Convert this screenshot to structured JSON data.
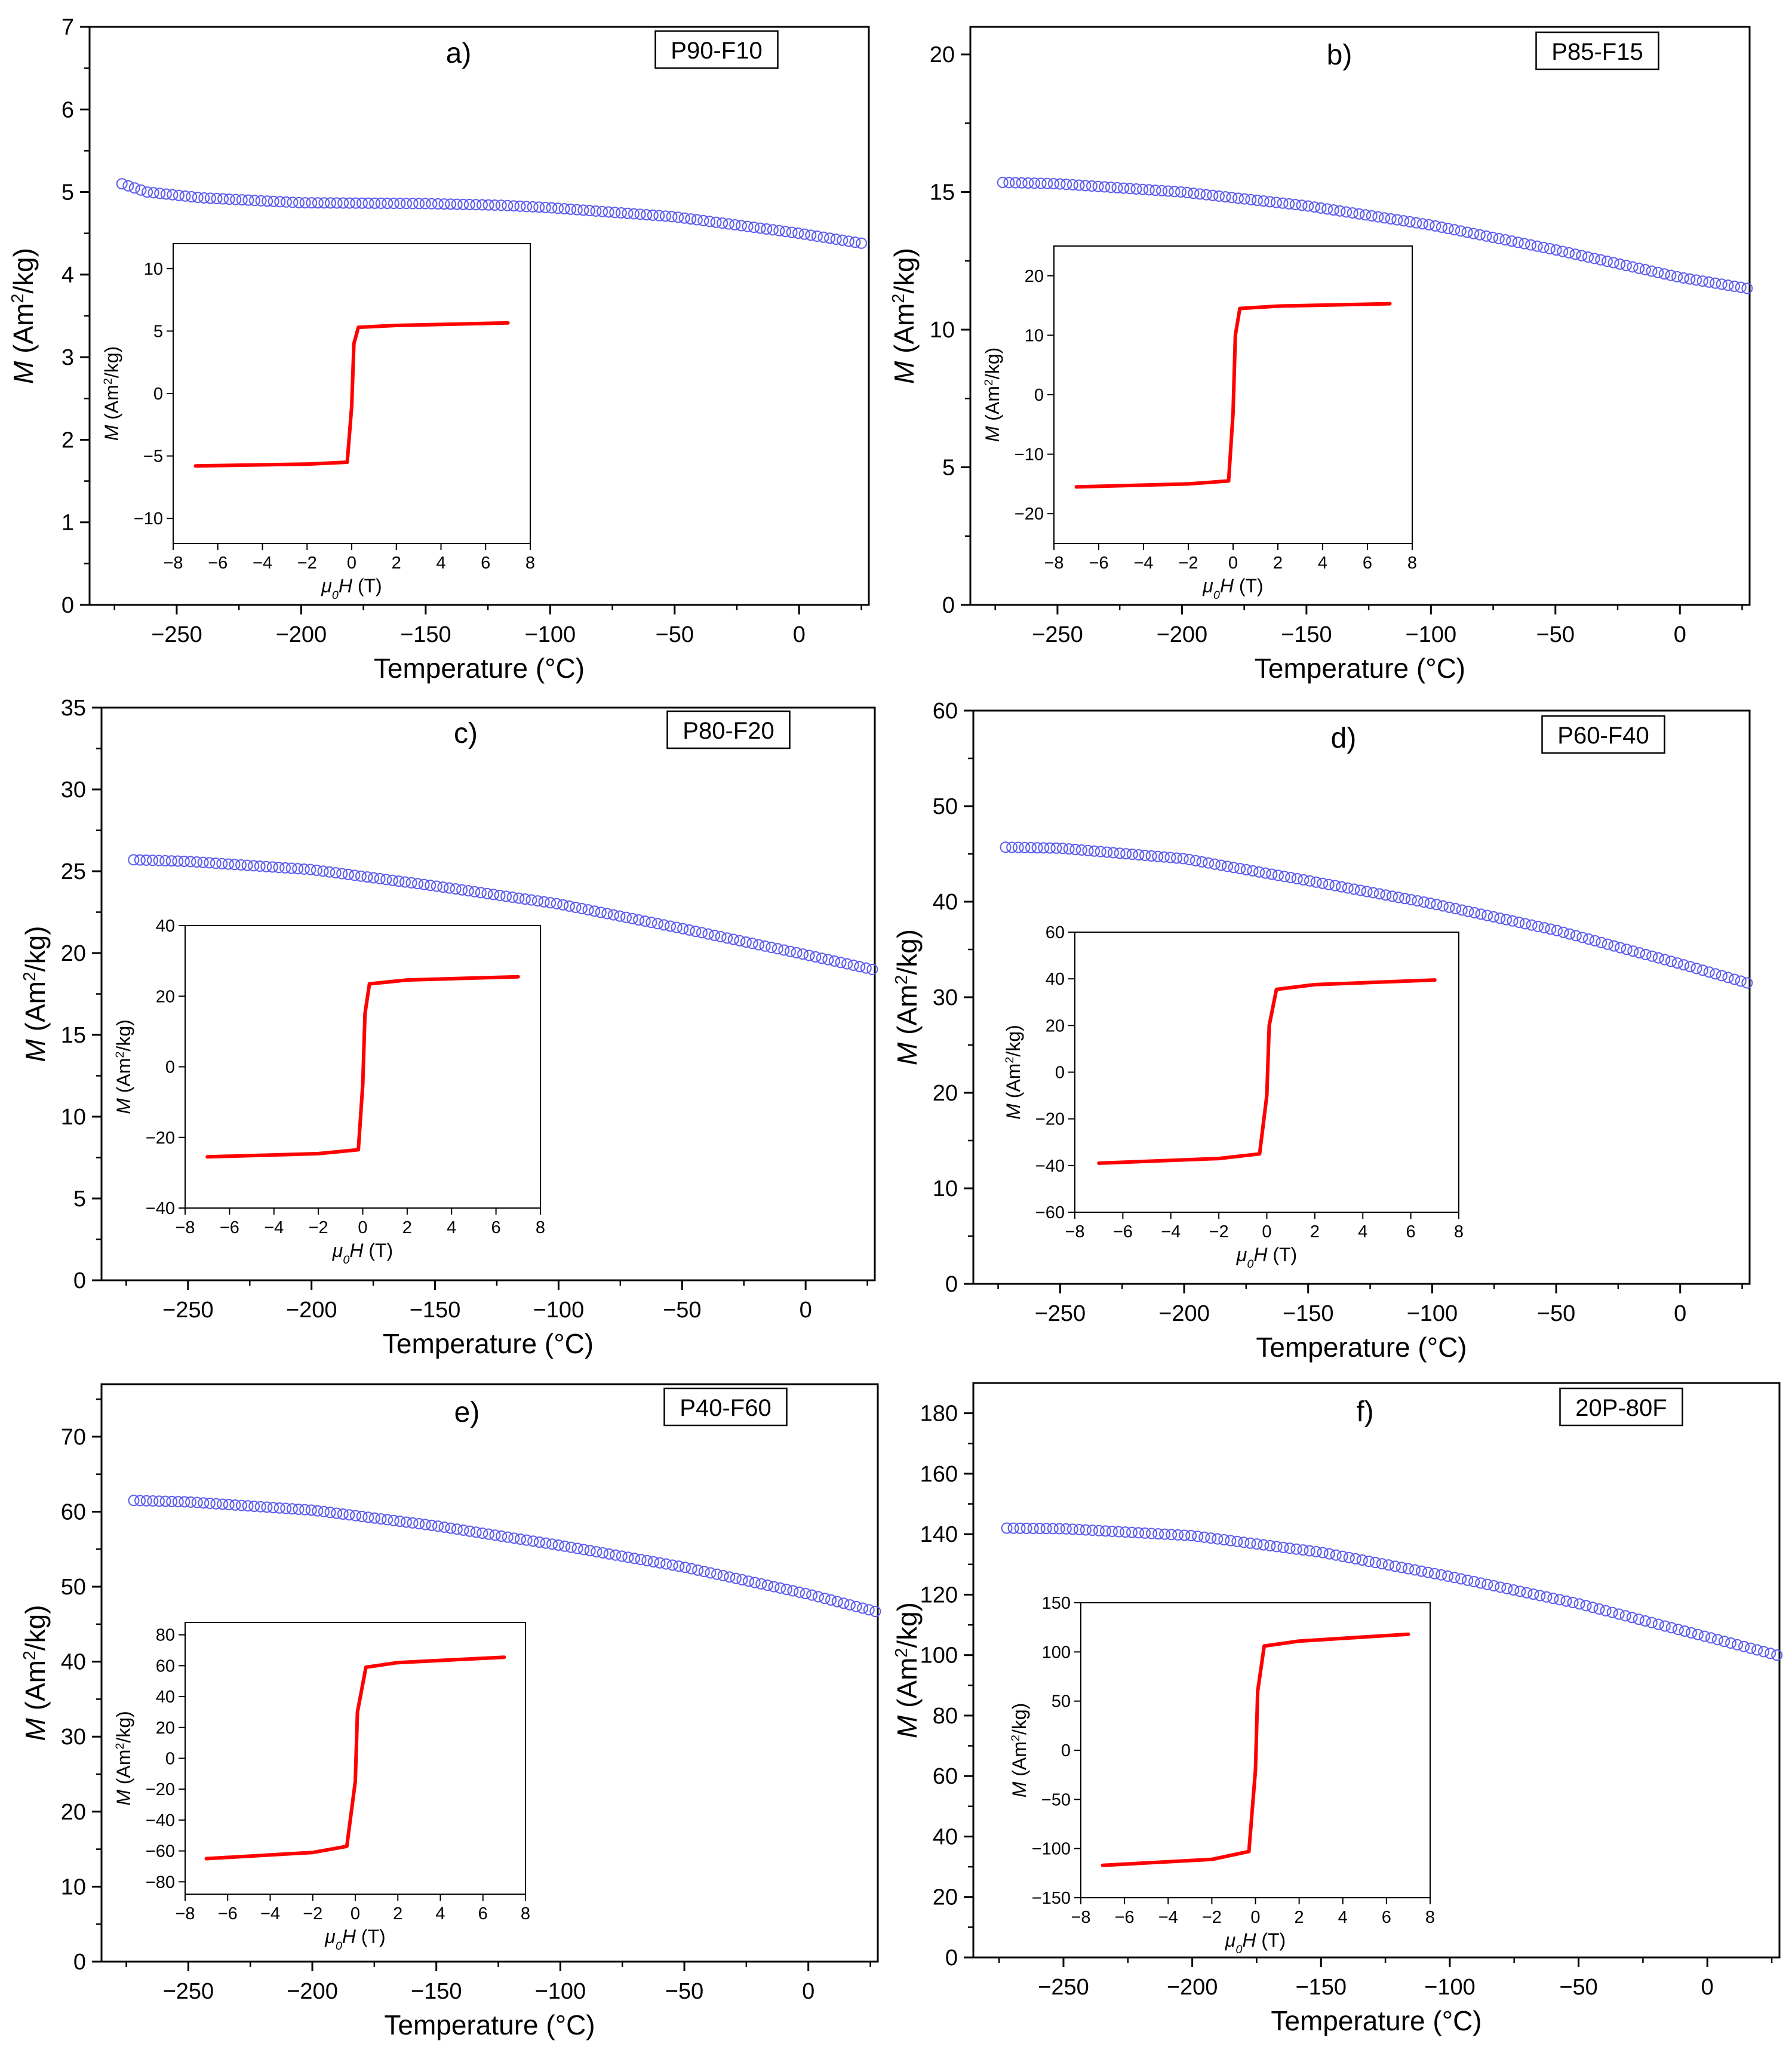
{
  "figure": {
    "marker_color": "#5b5bf0",
    "inset_color": "#ff0000",
    "common": {
      "xlabel": "Temperature (°C)",
      "ylabel_main": "M (Am²/kg)",
      "ylabel_inset": "M (Am²/kg)",
      "xlabel_inset": "μ0H (T)",
      "xticks": [
        -250,
        -200,
        -150,
        -100,
        -50,
        0
      ],
      "xlim": [
        -285,
        28
      ],
      "inset_xticks": [
        -8,
        -6,
        -4,
        -2,
        0,
        2,
        4,
        6,
        8
      ],
      "inset_xlim": [
        -8,
        8
      ]
    }
  },
  "chart_data": [
    {
      "type": "scatter",
      "panel": "a)",
      "sample": "P90-F10",
      "ylim": [
        0,
        7
      ],
      "yticks": [
        0,
        1,
        2,
        3,
        4,
        5,
        6,
        7
      ],
      "series": [
        {
          "name": "M(T)",
          "x_start": -272,
          "x_end": 25,
          "y_start": 5.1,
          "y_end": 4.38,
          "key_points": [
            [
              -272,
              5.1
            ],
            [
              -262,
              5.0
            ],
            [
              -240,
              4.93
            ],
            [
              -200,
              4.87
            ],
            [
              -150,
              4.86
            ],
            [
              -120,
              4.84
            ],
            [
              -100,
              4.81
            ],
            [
              -50,
              4.7
            ],
            [
              0,
              4.5
            ],
            [
              25,
              4.38
            ]
          ]
        }
      ],
      "inset": {
        "type": "line",
        "ylim": [
          -12,
          12
        ],
        "yticks": [
          -10,
          -5,
          0,
          5,
          10
        ],
        "points": [
          [
            -7,
            -5.8
          ],
          [
            -2,
            -5.65
          ],
          [
            -0.2,
            -5.5
          ],
          [
            0,
            -1
          ],
          [
            0.1,
            4
          ],
          [
            0.3,
            5.3
          ],
          [
            2,
            5.45
          ],
          [
            7,
            5.65
          ]
        ]
      }
    },
    {
      "type": "scatter",
      "panel": "b)",
      "sample": "P85-F15",
      "ylim": [
        0,
        21
      ],
      "yticks": [
        0,
        5,
        10,
        15,
        20
      ],
      "series": [
        {
          "name": "M(T)",
          "x_start": -272,
          "x_end": 27,
          "y_start": 15.35,
          "y_end": 11.5,
          "key_points": [
            [
              -272,
              15.35
            ],
            [
              -250,
              15.3
            ],
            [
              -200,
              15.0
            ],
            [
              -150,
              14.5
            ],
            [
              -100,
              13.8
            ],
            [
              -50,
              12.9
            ],
            [
              0,
              11.9
            ],
            [
              27,
              11.5
            ]
          ]
        }
      ],
      "inset": {
        "type": "line",
        "ylim": [
          -25,
          25
        ],
        "yticks": [
          -20,
          -10,
          0,
          10,
          20
        ],
        "points": [
          [
            -7,
            -15.5
          ],
          [
            -2,
            -15.0
          ],
          [
            -0.2,
            -14.5
          ],
          [
            0,
            -3
          ],
          [
            0.1,
            10
          ],
          [
            0.3,
            14.5
          ],
          [
            2,
            14.9
          ],
          [
            7,
            15.3
          ]
        ]
      }
    },
    {
      "type": "scatter",
      "panel": "c)",
      "sample": "P80-F20",
      "ylim": [
        0,
        35
      ],
      "yticks": [
        0,
        5,
        10,
        15,
        20,
        25,
        30,
        35
      ],
      "series": [
        {
          "name": "M(T)",
          "x_start": -272,
          "x_end": 27,
          "y_start": 25.7,
          "y_end": 19.0,
          "key_points": [
            [
              -272,
              25.7
            ],
            [
              -250,
              25.6
            ],
            [
              -200,
              25.1
            ],
            [
              -150,
              24.1
            ],
            [
              -100,
              23.0
            ],
            [
              -50,
              21.5
            ],
            [
              0,
              19.9
            ],
            [
              27,
              19.0
            ]
          ]
        }
      ],
      "inset": {
        "type": "line",
        "ylim": [
          -40,
          40
        ],
        "yticks": [
          -40,
          -20,
          0,
          20,
          40
        ],
        "points": [
          [
            -7,
            -25.5
          ],
          [
            -2,
            -24.6
          ],
          [
            -0.2,
            -23.5
          ],
          [
            0,
            -5
          ],
          [
            0.1,
            15
          ],
          [
            0.3,
            23.5
          ],
          [
            2,
            24.6
          ],
          [
            7,
            25.5
          ]
        ]
      }
    },
    {
      "type": "scatter",
      "panel": "d)",
      "sample": "P60-F40",
      "ylim": [
        0,
        60
      ],
      "yticks": [
        0,
        10,
        20,
        30,
        40,
        50,
        60
      ],
      "series": [
        {
          "name": "M(T)",
          "x_start": -272,
          "x_end": 27,
          "y_start": 45.7,
          "y_end": 31.5,
          "key_points": [
            [
              -272,
              45.7
            ],
            [
              -250,
              45.6
            ],
            [
              -200,
              44.5
            ],
            [
              -150,
              42.2
            ],
            [
              -100,
              39.8
            ],
            [
              -50,
              37.0
            ],
            [
              0,
              33.5
            ],
            [
              27,
              31.5
            ]
          ]
        }
      ],
      "inset": {
        "type": "line",
        "ylim": [
          -60,
          60
        ],
        "yticks": [
          -60,
          -40,
          -20,
          0,
          20,
          40,
          60
        ],
        "points": [
          [
            -7,
            -39
          ],
          [
            -2,
            -37
          ],
          [
            -0.3,
            -35
          ],
          [
            0,
            -10
          ],
          [
            0.1,
            20
          ],
          [
            0.4,
            35.5
          ],
          [
            2,
            37.5
          ],
          [
            7,
            39.5
          ]
        ]
      }
    },
    {
      "type": "scatter",
      "panel": "e)",
      "sample": "P40-F60",
      "ylim": [
        0,
        77
      ],
      "yticks": [
        0,
        10,
        20,
        30,
        40,
        50,
        60,
        70
      ],
      "series": [
        {
          "name": "M(T)",
          "x_start": -272,
          "x_end": 27,
          "y_start": 61.5,
          "y_end": 46.7,
          "key_points": [
            [
              -272,
              61.5
            ],
            [
              -250,
              61.3
            ],
            [
              -200,
              60.2
            ],
            [
              -150,
              58.1
            ],
            [
              -100,
              55.5
            ],
            [
              -50,
              52.6
            ],
            [
              0,
              49.0
            ],
            [
              27,
              46.7
            ]
          ]
        }
      ],
      "inset": {
        "type": "line",
        "ylim": [
          -88,
          88
        ],
        "yticks": [
          -80,
          -60,
          -40,
          -20,
          0,
          20,
          40,
          60,
          80
        ],
        "points": [
          [
            -7,
            -65
          ],
          [
            -2,
            -61
          ],
          [
            -0.4,
            -57
          ],
          [
            0,
            -15
          ],
          [
            0.1,
            30
          ],
          [
            0.5,
            59
          ],
          [
            2,
            62
          ],
          [
            7,
            65.5
          ]
        ]
      }
    },
    {
      "type": "scatter",
      "panel": "f)",
      "sample": "20P-80F",
      "ylim": [
        0,
        190
      ],
      "yticks": [
        0,
        20,
        40,
        60,
        80,
        100,
        120,
        140,
        160,
        180
      ],
      "series": [
        {
          "name": "M(T)",
          "x_start": -272,
          "x_end": 27,
          "y_start": 142,
          "y_end": 100,
          "key_points": [
            [
              -272,
              142
            ],
            [
              -250,
              141.8
            ],
            [
              -200,
              139.5
            ],
            [
              -150,
              134
            ],
            [
              -100,
              126
            ],
            [
              -50,
              117
            ],
            [
              0,
              106
            ],
            [
              27,
              100
            ]
          ]
        }
      ],
      "inset": {
        "type": "line",
        "ylim": [
          -150,
          150
        ],
        "yticks": [
          -150,
          -100,
          -50,
          0,
          50,
          100,
          150
        ],
        "points": [
          [
            -7,
            -117
          ],
          [
            -2,
            -111
          ],
          [
            -0.3,
            -103
          ],
          [
            0,
            -20
          ],
          [
            0.1,
            60
          ],
          [
            0.4,
            106
          ],
          [
            2,
            111
          ],
          [
            7,
            118
          ]
        ]
      }
    }
  ]
}
